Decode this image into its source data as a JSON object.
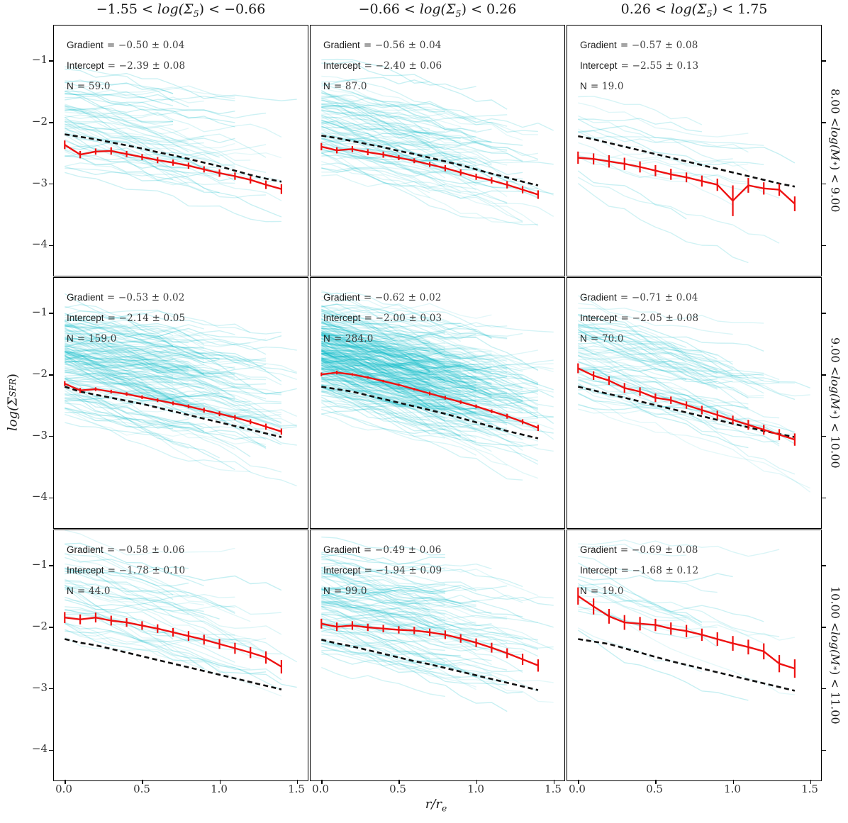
{
  "chart_data": {
    "type": "line",
    "description": "3x3 grid of radial star-formation-rate surface density profiles; cyan = individual galaxy profiles, red = median with error bars, black dashed = reference relation",
    "xlabel": {
      "pre": "",
      "it": "r/r",
      "sub": "e",
      "post": ""
    },
    "ylabel": {
      "pre": "",
      "it": "log(Σ",
      "sub": "SFR",
      "post": ")"
    },
    "xlim": [
      -0.07,
      1.57
    ],
    "ylim": [
      -4.5,
      -0.43
    ],
    "xticks": [
      0,
      0.5,
      1.0,
      1.5
    ],
    "yticks": [
      -1,
      -2,
      -3,
      -4
    ],
    "xtick_labels": [
      "0.0",
      "0.5",
      "1.0",
      "1.5"
    ],
    "ytick_labels": [
      "−1",
      "−2",
      "−3",
      "−4"
    ],
    "grid": false,
    "legend": "none",
    "colors": {
      "median_line": "#ee1111",
      "reference_dashed": "#111111",
      "individual_profiles": "#00b9c7",
      "background": "#ffffff"
    },
    "col_titles": [
      {
        "pre": "−1.55 < ",
        "it": "log(Σ",
        "sub": "5",
        "post": ") < −0.66"
      },
      {
        "pre": "−0.66 < ",
        "it": "log(Σ",
        "sub": "5",
        "post": ") < 0.26"
      },
      {
        "pre": "0.26 < ",
        "it": "log(Σ",
        "sub": "5",
        "post": ") < 1.75"
      }
    ],
    "row_titles": [
      {
        "pre": "8.00 < ",
        "it": "log(M",
        "sub": "∗",
        "post": ") < 9.00"
      },
      {
        "pre": "9.00 < ",
        "it": "log(M",
        "sub": "∗",
        "post": ") < 10.00"
      },
      {
        "pre": "10.00 < ",
        "it": "log(M",
        "sub": "∗",
        "post": ") < 11.00"
      }
    ],
    "x": [
      0,
      0.1,
      0.2,
      0.3,
      0.4,
      0.5,
      0.6,
      0.7,
      0.8,
      0.9,
      1.0,
      1.1,
      1.2,
      1.3,
      1.4
    ],
    "panels": [
      {
        "row": 0,
        "col": 0,
        "gradient": -0.5,
        "intercept": -2.39,
        "n": 59,
        "lines": [
          {
            "label": "Gradient",
            "value": "= −0.50 ± 0.04"
          },
          {
            "label": "Intercept",
            "value": "= −2.39 ± 0.08"
          },
          {
            "label": "N",
            "value": "= 59.0"
          }
        ],
        "red_median": [
          -2.37,
          -2.53,
          -2.48,
          -2.47,
          -2.52,
          -2.57,
          -2.62,
          -2.66,
          -2.71,
          -2.77,
          -2.83,
          -2.88,
          -2.94,
          -3.02,
          -3.09
        ],
        "err": [
          0.07,
          0.06,
          0.05,
          0.06,
          0.05,
          0.05,
          0.05,
          0.05,
          0.05,
          0.05,
          0.06,
          0.06,
          0.06,
          0.07,
          0.08
        ],
        "dashed_reference": [
          -2.2,
          -2.24,
          -2.28,
          -2.33,
          -2.38,
          -2.43,
          -2.49,
          -2.54,
          -2.6,
          -2.66,
          -2.72,
          -2.79,
          -2.86,
          -2.92,
          -2.97
        ]
      },
      {
        "row": 0,
        "col": 1,
        "gradient": -0.56,
        "intercept": -2.4,
        "n": 87,
        "lines": [
          {
            "label": "Gradient",
            "value": "= −0.56 ± 0.04"
          },
          {
            "label": "Intercept",
            "value": "= −2.40 ± 0.06"
          },
          {
            "label": "N",
            "value": "= 87.0"
          }
        ],
        "red_median": [
          -2.4,
          -2.46,
          -2.44,
          -2.49,
          -2.53,
          -2.58,
          -2.63,
          -2.69,
          -2.75,
          -2.82,
          -2.89,
          -2.95,
          -3.02,
          -3.1,
          -3.18
        ],
        "err": [
          0.06,
          0.05,
          0.05,
          0.05,
          0.05,
          0.04,
          0.04,
          0.04,
          0.05,
          0.05,
          0.05,
          0.05,
          0.06,
          0.06,
          0.07
        ],
        "dashed_reference": [
          -2.22,
          -2.26,
          -2.31,
          -2.36,
          -2.41,
          -2.47,
          -2.52,
          -2.58,
          -2.64,
          -2.7,
          -2.77,
          -2.84,
          -2.9,
          -2.97,
          -3.03
        ]
      },
      {
        "row": 0,
        "col": 2,
        "gradient": -0.57,
        "intercept": -2.55,
        "n": 19,
        "lines": [
          {
            "label": "Gradient",
            "value": "= −0.57 ± 0.08"
          },
          {
            "label": "Intercept",
            "value": "= −2.55 ± 0.13"
          },
          {
            "label": "N",
            "value": "= 19.0"
          }
        ],
        "red_median": [
          -2.58,
          -2.6,
          -2.64,
          -2.68,
          -2.73,
          -2.79,
          -2.85,
          -2.9,
          -2.96,
          -3.02,
          -3.28,
          -3.03,
          -3.08,
          -3.1,
          -3.33
        ],
        "err": [
          0.1,
          0.09,
          0.1,
          0.1,
          0.09,
          0.09,
          0.09,
          0.08,
          0.09,
          0.1,
          0.25,
          0.12,
          0.1,
          0.1,
          0.12
        ],
        "dashed_reference": [
          -2.23,
          -2.28,
          -2.34,
          -2.4,
          -2.46,
          -2.52,
          -2.58,
          -2.64,
          -2.7,
          -2.76,
          -2.82,
          -2.88,
          -2.94,
          -3.0,
          -3.05
        ]
      },
      {
        "row": 1,
        "col": 0,
        "gradient": -0.53,
        "intercept": -2.14,
        "n": 159,
        "lines": [
          {
            "label": "Gradient",
            "value": "= −0.53 ± 0.02"
          },
          {
            "label": "Intercept",
            "value": "= −2.14 ± 0.05"
          },
          {
            "label": "N",
            "value": "= 159.0"
          }
        ],
        "red_median": [
          -2.15,
          -2.26,
          -2.24,
          -2.28,
          -2.32,
          -2.37,
          -2.42,
          -2.47,
          -2.52,
          -2.58,
          -2.64,
          -2.7,
          -2.77,
          -2.85,
          -2.93
        ],
        "err": [
          0.04,
          0.04,
          0.03,
          0.03,
          0.03,
          0.03,
          0.03,
          0.03,
          0.03,
          0.04,
          0.04,
          0.04,
          0.04,
          0.05,
          0.05
        ],
        "dashed_reference": [
          -2.2,
          -2.28,
          -2.33,
          -2.38,
          -2.43,
          -2.48,
          -2.54,
          -2.6,
          -2.66,
          -2.72,
          -2.78,
          -2.84,
          -2.9,
          -2.96,
          -3.02
        ]
      },
      {
        "row": 1,
        "col": 1,
        "gradient": -0.62,
        "intercept": -2.0,
        "n": 284,
        "lines": [
          {
            "label": "Gradient",
            "value": "= −0.62 ± 0.02"
          },
          {
            "label": "Intercept",
            "value": "= −2.00 ± 0.03"
          },
          {
            "label": "N",
            "value": "= 284.0"
          }
        ],
        "red_median": [
          -2.0,
          -1.97,
          -2.0,
          -2.05,
          -2.11,
          -2.17,
          -2.24,
          -2.31,
          -2.38,
          -2.45,
          -2.52,
          -2.6,
          -2.68,
          -2.77,
          -2.87
        ],
        "err": [
          0.03,
          0.03,
          0.02,
          0.02,
          0.02,
          0.02,
          0.02,
          0.03,
          0.03,
          0.03,
          0.03,
          0.03,
          0.04,
          0.04,
          0.05
        ],
        "dashed_reference": [
          -2.2,
          -2.24,
          -2.28,
          -2.34,
          -2.4,
          -2.46,
          -2.52,
          -2.58,
          -2.64,
          -2.71,
          -2.78,
          -2.85,
          -2.92,
          -2.98,
          -3.04
        ]
      },
      {
        "row": 1,
        "col": 2,
        "gradient": -0.71,
        "intercept": -2.05,
        "n": 70,
        "lines": [
          {
            "label": "Gradient",
            "value": "= −0.71 ± 0.04"
          },
          {
            "label": "Intercept",
            "value": "= −2.05 ± 0.08"
          },
          {
            "label": "N",
            "value": "= 70.0"
          }
        ],
        "red_median": [
          -1.9,
          -2.02,
          -2.1,
          -2.22,
          -2.28,
          -2.38,
          -2.42,
          -2.5,
          -2.58,
          -2.66,
          -2.74,
          -2.82,
          -2.9,
          -2.98,
          -3.06
        ],
        "err": [
          0.08,
          0.07,
          0.07,
          0.08,
          0.07,
          0.07,
          0.06,
          0.06,
          0.07,
          0.07,
          0.07,
          0.08,
          0.08,
          0.09,
          0.1
        ],
        "dashed_reference": [
          -2.2,
          -2.26,
          -2.32,
          -2.38,
          -2.44,
          -2.5,
          -2.56,
          -2.62,
          -2.68,
          -2.74,
          -2.8,
          -2.86,
          -2.92,
          -2.97,
          -3.02
        ]
      },
      {
        "row": 2,
        "col": 0,
        "gradient": -0.58,
        "intercept": -1.78,
        "n": 44,
        "lines": [
          {
            "label": "Gradient",
            "value": "= −0.58 ± 0.06"
          },
          {
            "label": "Intercept",
            "value": "= −1.78 ± 0.10"
          },
          {
            "label": "N",
            "value": "= 44.0"
          }
        ],
        "red_median": [
          -1.85,
          -1.88,
          -1.85,
          -1.9,
          -1.93,
          -1.98,
          -2.03,
          -2.09,
          -2.15,
          -2.21,
          -2.28,
          -2.35,
          -2.42,
          -2.5,
          -2.65
        ],
        "err": [
          0.09,
          0.08,
          0.08,
          0.08,
          0.07,
          0.07,
          0.07,
          0.07,
          0.08,
          0.08,
          0.08,
          0.09,
          0.09,
          0.1,
          0.11
        ],
        "dashed_reference": [
          -2.2,
          -2.26,
          -2.3,
          -2.36,
          -2.42,
          -2.48,
          -2.54,
          -2.6,
          -2.66,
          -2.72,
          -2.78,
          -2.84,
          -2.9,
          -2.96,
          -3.02
        ]
      },
      {
        "row": 2,
        "col": 1,
        "gradient": -0.49,
        "intercept": -1.94,
        "n": 99,
        "lines": [
          {
            "label": "Gradient",
            "value": "= −0.49 ± 0.06"
          },
          {
            "label": "Intercept",
            "value": "= −1.94 ± 0.09"
          },
          {
            "label": "N",
            "value": "= 99.0"
          }
        ],
        "red_median": [
          -1.95,
          -2.0,
          -1.98,
          -2.01,
          -2.03,
          -2.05,
          -2.06,
          -2.09,
          -2.13,
          -2.19,
          -2.26,
          -2.34,
          -2.43,
          -2.53,
          -2.63
        ],
        "err": [
          0.08,
          0.07,
          0.07,
          0.06,
          0.06,
          0.06,
          0.06,
          0.06,
          0.07,
          0.07,
          0.07,
          0.08,
          0.08,
          0.09,
          0.1
        ],
        "dashed_reference": [
          -2.21,
          -2.27,
          -2.32,
          -2.38,
          -2.44,
          -2.5,
          -2.56,
          -2.61,
          -2.67,
          -2.73,
          -2.79,
          -2.85,
          -2.91,
          -2.97,
          -3.03
        ]
      },
      {
        "row": 2,
        "col": 2,
        "gradient": -0.69,
        "intercept": -1.68,
        "n": 19,
        "lines": [
          {
            "label": "Gradient",
            "value": "= −0.69 ± 0.08"
          },
          {
            "label": "Intercept",
            "value": "= −1.68 ± 0.12"
          },
          {
            "label": "N",
            "value": "= 19.0"
          }
        ],
        "red_median": [
          -1.5,
          -1.67,
          -1.83,
          -1.93,
          -1.95,
          -1.97,
          -2.03,
          -2.07,
          -2.13,
          -2.2,
          -2.27,
          -2.33,
          -2.4,
          -2.6,
          -2.68
        ],
        "err": [
          0.14,
          0.13,
          0.12,
          0.12,
          0.11,
          0.1,
          0.1,
          0.1,
          0.1,
          0.11,
          0.12,
          0.12,
          0.13,
          0.14,
          0.15
        ],
        "dashed_reference": [
          -2.2,
          -2.24,
          -2.28,
          -2.35,
          -2.42,
          -2.49,
          -2.56,
          -2.62,
          -2.68,
          -2.74,
          -2.8,
          -2.86,
          -2.92,
          -2.98,
          -3.04
        ]
      }
    ]
  }
}
